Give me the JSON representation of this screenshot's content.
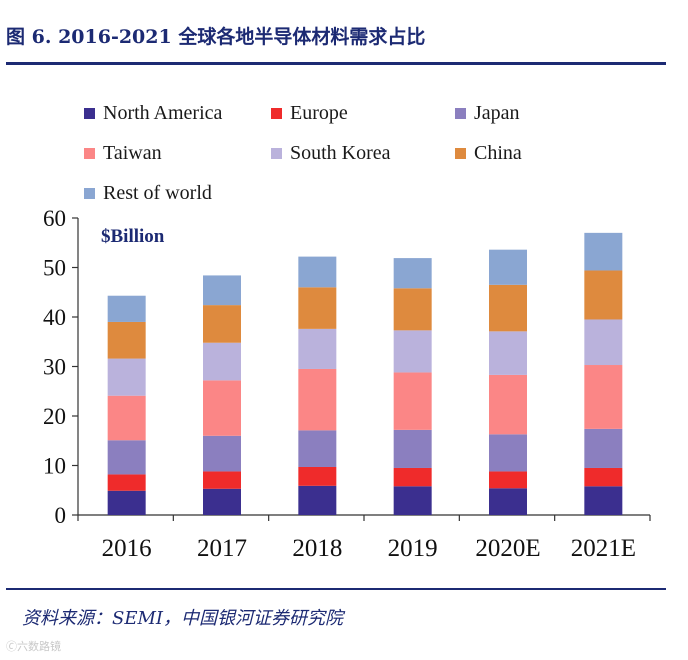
{
  "header": {
    "title": "图 6. 2016-2021 全球各地半导体材料需求占比"
  },
  "unit_label": "$Billion",
  "source": "资料来源：SEMI，中国银河证券研究院",
  "watermark": "🄫六数路镜",
  "chart_data": {
    "type": "bar",
    "stacked": true,
    "categories": [
      "2016",
      "2017",
      "2018",
      "2019",
      "2020E",
      "2021E"
    ],
    "ylim": [
      0,
      60
    ],
    "yticks": [
      0,
      10,
      20,
      30,
      40,
      50,
      60
    ],
    "grid": false,
    "legend_position": "top",
    "series": [
      {
        "name": "North America",
        "color": "#3b2f8f",
        "values": [
          4.9,
          5.3,
          5.9,
          5.8,
          5.4,
          5.8
        ]
      },
      {
        "name": "Europe",
        "color": "#ef2b2b",
        "values": [
          3.3,
          3.5,
          3.8,
          3.7,
          3.4,
          3.7
        ]
      },
      {
        "name": "Japan",
        "color": "#8b7fbf",
        "values": [
          6.9,
          7.2,
          7.4,
          7.7,
          7.5,
          7.9
        ]
      },
      {
        "name": "Taiwan",
        "color": "#fb8686",
        "values": [
          9.0,
          11.2,
          12.4,
          11.6,
          12.0,
          12.9
        ]
      },
      {
        "name": "South Korea",
        "color": "#bab2dc",
        "values": [
          7.5,
          7.6,
          8.1,
          8.5,
          8.8,
          9.2
        ]
      },
      {
        "name": "China",
        "color": "#de8a3e",
        "values": [
          7.4,
          7.6,
          8.4,
          8.5,
          9.4,
          9.9
        ]
      },
      {
        "name": "Rest of world",
        "color": "#8aa6d2",
        "values": [
          5.3,
          6.0,
          6.2,
          6.1,
          7.1,
          7.6
        ]
      }
    ]
  }
}
